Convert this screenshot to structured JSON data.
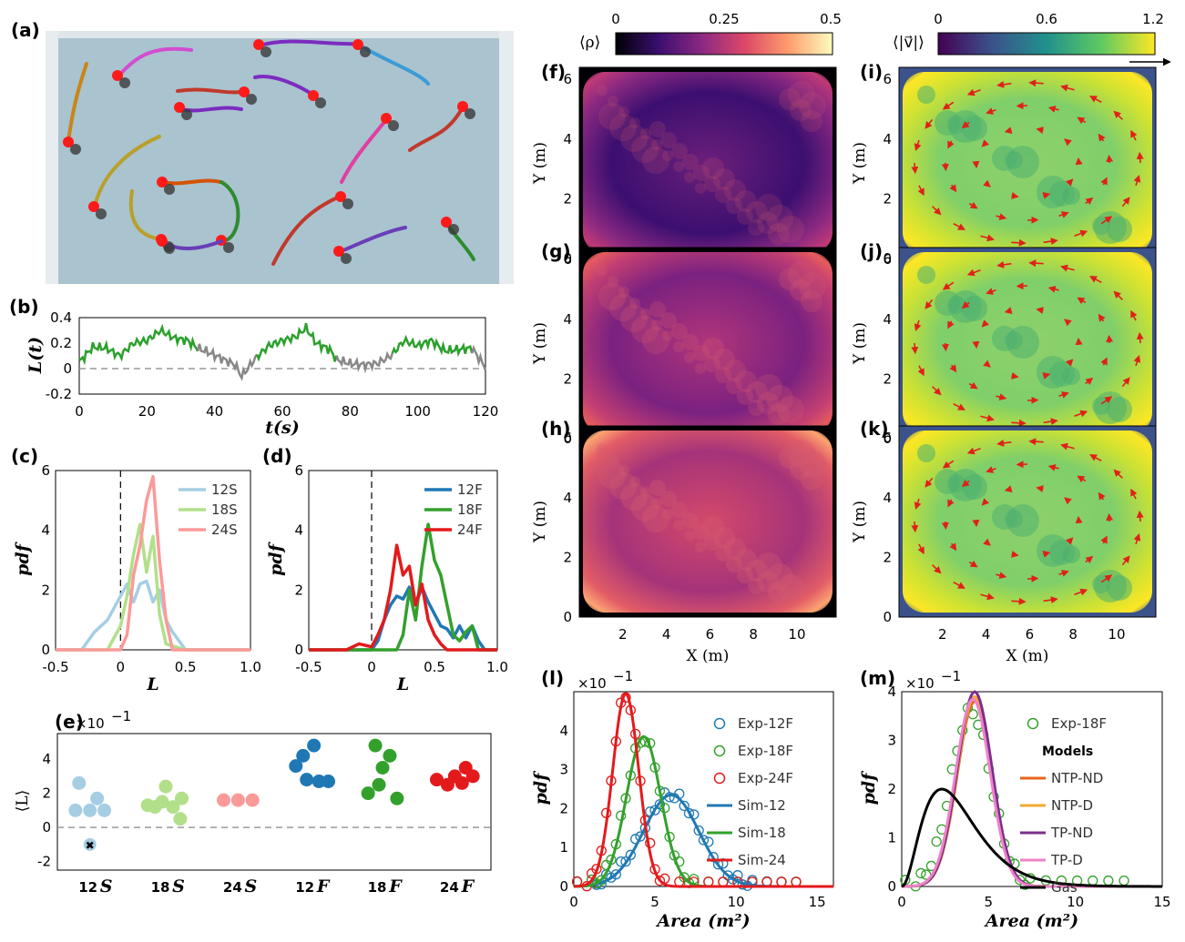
{
  "panel_labels": {
    "a": "(a)",
    "b": "(b)",
    "c": "(c)",
    "d": "(d)",
    "e": "(e)",
    "f": "(f)",
    "g": "(g)",
    "h": "(h)",
    "i": "(i)",
    "j": "(j)",
    "k": "(k)",
    "l": "(l)",
    "m": "(m)"
  },
  "panel_a": {
    "floor_color": "#a9c3cf",
    "trail_colors": [
      "#c9851a",
      "#d24dd0",
      "#7b2cbf",
      "#3b9bd6",
      "#c0392b",
      "#b8a02a",
      "#2e8b2e",
      "#d35400",
      "#e040a0",
      "#6a3db8"
    ],
    "marker_color": "#ff1a1a"
  },
  "colorbars": {
    "rho": {
      "label": "⟨ρ⟩",
      "ticks": [
        "0",
        "0.25",
        "0.5"
      ],
      "colors": [
        "#000004",
        "#3b0f70",
        "#8c2981",
        "#de4968",
        "#fe9f6d",
        "#fcfdbf"
      ]
    },
    "vel": {
      "label": "⟨|v⃗|⟩",
      "ticks": [
        "0",
        "0.6",
        "1.2"
      ],
      "colors": [
        "#440154",
        "#3b528b",
        "#21918c",
        "#5ec962",
        "#fde725"
      ]
    }
  },
  "heatmap_axes": {
    "ylabel": "Y (m)",
    "xlabel": "X (m)",
    "yticks": [
      "0",
      "2",
      "4",
      "6"
    ],
    "xticks": [
      "2",
      "4",
      "6",
      "8",
      "10"
    ]
  },
  "chart_data": [
    {
      "id": "b",
      "type": "line",
      "ylabel": "L(t)",
      "xlabel": "t(s)",
      "xlim": [
        0,
        120
      ],
      "ylim": [
        -0.2,
        0.4
      ],
      "xticks": [
        "0",
        "20",
        "40",
        "60",
        "80",
        "100",
        "120"
      ],
      "yticks": [
        "0.4",
        "0.2",
        "0",
        "-0.2"
      ],
      "colors": {
        "rotating": "#2ca02c",
        "transition": "#888888"
      },
      "x": [
        0,
        4,
        8,
        12,
        16,
        20,
        24,
        28,
        32,
        35,
        38,
        42,
        46,
        48,
        52,
        56,
        60,
        64,
        67,
        70,
        74,
        76,
        80,
        84,
        88,
        92,
        96,
        100,
        104,
        108,
        112,
        116,
        120
      ],
      "y": [
        0.05,
        0.17,
        0.16,
        0.1,
        0.2,
        0.22,
        0.3,
        0.24,
        0.22,
        0.16,
        0.13,
        0.08,
        0.03,
        -0.06,
        0.08,
        0.18,
        0.22,
        0.25,
        0.32,
        0.2,
        0.15,
        0.07,
        0.04,
        0.03,
        0.04,
        0.1,
        0.22,
        0.18,
        0.22,
        0.14,
        0.15,
        0.16,
        0.01
      ],
      "transition_ranges": [
        [
          35,
          52
        ],
        [
          76,
          92
        ],
        [
          116,
          120
        ]
      ]
    },
    {
      "id": "c",
      "type": "line",
      "ylabel": "pdf",
      "xlabel": "L",
      "xlim": [
        -0.5,
        1.0
      ],
      "ylim": [
        0,
        6
      ],
      "xticks": [
        "-0.5",
        "0",
        "0.5",
        "1.0"
      ],
      "yticks": [
        "0",
        "2",
        "4",
        "6"
      ],
      "series": [
        {
          "name": "12S",
          "color": "#a6cee3",
          "x": [
            -0.5,
            -0.3,
            -0.2,
            -0.1,
            0,
            0.05,
            0.1,
            0.15,
            0.2,
            0.25,
            0.3,
            0.35,
            0.4,
            0.5,
            1.0
          ],
          "y": [
            0,
            0,
            0.6,
            1.0,
            1.8,
            2.2,
            1.6,
            2.2,
            2.3,
            1.6,
            2.0,
            1.0,
            0.6,
            0,
            0
          ]
        },
        {
          "name": "18S",
          "color": "#b2df8a",
          "x": [
            -0.5,
            -0.1,
            0,
            0.05,
            0.1,
            0.15,
            0.2,
            0.25,
            0.3,
            0.35,
            0.5,
            1.0
          ],
          "y": [
            0,
            0,
            0.8,
            1.8,
            3.2,
            4.2,
            2.6,
            3.8,
            1.2,
            0.2,
            0,
            0
          ]
        },
        {
          "name": "24S",
          "color": "#fb9a99",
          "x": [
            -0.5,
            0,
            0.05,
            0.1,
            0.15,
            0.2,
            0.25,
            0.3,
            0.35,
            0.4,
            1.0
          ],
          "y": [
            0,
            0,
            0.5,
            2.5,
            3.5,
            5.0,
            5.8,
            3.0,
            1.0,
            0,
            0
          ]
        }
      ]
    },
    {
      "id": "d",
      "type": "line",
      "ylabel": "pdf",
      "xlabel": "L",
      "xlim": [
        -0.5,
        1.0
      ],
      "ylim": [
        0,
        6
      ],
      "xticks": [
        "-0.5",
        "0",
        "0.5",
        "1.0"
      ],
      "yticks": [
        "0",
        "2",
        "4",
        "6"
      ],
      "series": [
        {
          "name": "12F",
          "color": "#1f78b4",
          "x": [
            -0.5,
            0,
            0.05,
            0.1,
            0.15,
            0.2,
            0.25,
            0.3,
            0.35,
            0.4,
            0.45,
            0.5,
            0.55,
            0.6,
            0.65,
            0.7,
            0.75,
            0.8,
            0.85,
            0.9,
            1.0
          ],
          "y": [
            0,
            0,
            0.3,
            1.0,
            1.5,
            1.8,
            1.7,
            2.1,
            1.5,
            2.1,
            1.6,
            1.2,
            0.8,
            0.7,
            0.4,
            0.8,
            0.4,
            0.8,
            0.3,
            0,
            0
          ]
        },
        {
          "name": "18F",
          "color": "#33a02c",
          "x": [
            -0.5,
            0.2,
            0.25,
            0.3,
            0.35,
            0.4,
            0.45,
            0.5,
            0.55,
            0.6,
            0.65,
            0.7,
            0.75,
            0.8,
            0.85,
            1.0
          ],
          "y": [
            0,
            0,
            0.5,
            2.0,
            1.0,
            2.8,
            4.2,
            3.0,
            2.5,
            1.5,
            0.5,
            0.3,
            0.6,
            0.8,
            0,
            0
          ]
        },
        {
          "name": "24F",
          "color": "#e31a1c",
          "x": [
            -0.5,
            -0.2,
            -0.1,
            0,
            0.05,
            0.1,
            0.15,
            0.2,
            0.25,
            0.3,
            0.35,
            0.4,
            0.45,
            0.5,
            0.55,
            0.6,
            1.0
          ],
          "y": [
            0,
            0,
            0.2,
            0.1,
            0.5,
            1.0,
            2.0,
            3.5,
            2.5,
            2.8,
            1.5,
            2.2,
            1.0,
            0.5,
            0.2,
            0,
            0
          ]
        }
      ]
    },
    {
      "id": "e",
      "type": "scatter",
      "ylabel": "⟨L⟩",
      "scale_label": "×10",
      "ylim": [
        -2.5,
        5.5
      ],
      "yticks": [
        "4",
        "2",
        "0",
        "-2"
      ],
      "categories": [
        "12S",
        "18S",
        "24S",
        "12F",
        "18F",
        "24F"
      ],
      "series": [
        {
          "name": "12S",
          "color": "#a6cee3",
          "points": [
            [
              -0.25,
              1.0
            ],
            [
              -0.2,
              2.6
            ],
            [
              -0.05,
              1.0
            ],
            [
              0.05,
              1.7
            ],
            [
              0.15,
              1.0
            ]
          ]
        },
        {
          "name": "18S",
          "color": "#b2df8a",
          "points": [
            [
              -0.25,
              1.3
            ],
            [
              -0.15,
              1.2
            ],
            [
              -0.05,
              1.5
            ],
            [
              0.0,
              2.4
            ],
            [
              0.1,
              1.2
            ],
            [
              0.2,
              0.5
            ],
            [
              0.22,
              1.7
            ]
          ]
        },
        {
          "name": "24S",
          "color": "#fb9a99",
          "points": [
            [
              -0.2,
              1.6
            ],
            [
              0,
              1.6
            ],
            [
              0.2,
              1.6
            ]
          ]
        },
        {
          "name": "12F",
          "color": "#1f78b4",
          "points": [
            [
              -0.2,
              3.6
            ],
            [
              -0.1,
              4.2
            ],
            [
              0.05,
              4.8
            ],
            [
              -0.05,
              2.8
            ],
            [
              0.12,
              2.7
            ],
            [
              0.25,
              2.7
            ]
          ]
        },
        {
          "name": "18F",
          "color": "#33a02c",
          "points": [
            [
              -0.2,
              2.0
            ],
            [
              -0.1,
              4.8
            ],
            [
              0.0,
              3.5
            ],
            [
              0.1,
              4.2
            ],
            [
              0.2,
              1.7
            ],
            [
              -0.05,
              2.5
            ]
          ]
        },
        {
          "name": "24F",
          "color": "#e31a1c",
          "points": [
            [
              -0.25,
              2.8
            ],
            [
              -0.1,
              2.5
            ],
            [
              0.0,
              3.0
            ],
            [
              0.1,
              2.6
            ],
            [
              0.15,
              3.5
            ],
            [
              0.25,
              3.0
            ]
          ]
        }
      ],
      "outlier": {
        "category": "12S",
        "point": [
          -0.05,
          -1.0
        ]
      }
    },
    {
      "id": "l",
      "type": "line",
      "ylabel": "pdf",
      "xlabel": "Area (m²)",
      "scale_label": "×10",
      "xlim": [
        0,
        16
      ],
      "ylim": [
        0,
        0.5
      ],
      "xticks": [
        "0",
        "5",
        "10",
        "15"
      ],
      "yticks": [
        "0",
        "1",
        "2",
        "3",
        "4"
      ],
      "series": [
        {
          "name": "Exp-12F",
          "kind": "markers",
          "color": "#1f78b4",
          "mean": 6.0,
          "sd": 1.7,
          "peak": 0.235
        },
        {
          "name": "Exp-18F",
          "kind": "markers",
          "color": "#33a02c",
          "mean": 4.3,
          "sd": 1.05,
          "peak": 0.38
        },
        {
          "name": "Exp-24F",
          "kind": "markers",
          "color": "#e31a1c",
          "mean": 3.2,
          "sd": 0.8,
          "peak": 0.49
        },
        {
          "name": "Sim-12",
          "kind": "line",
          "color": "#1f78b4",
          "mean": 6.0,
          "sd": 1.7,
          "peak": 0.235
        },
        {
          "name": "Sim-18",
          "kind": "line",
          "color": "#33a02c",
          "mean": 4.3,
          "sd": 1.05,
          "peak": 0.385
        },
        {
          "name": "Sim-24",
          "kind": "line",
          "color": "#e31a1c",
          "mean": 3.2,
          "sd": 0.8,
          "peak": 0.495
        }
      ]
    },
    {
      "id": "m",
      "type": "line",
      "ylabel": "pdf",
      "xlabel": "Area (m²)",
      "scale_label": "×10",
      "xlim": [
        0,
        15
      ],
      "ylim": [
        0,
        0.4
      ],
      "xticks": [
        "0",
        "5",
        "10",
        "15"
      ],
      "yticks": [
        "0",
        "1",
        "2",
        "3",
        "4"
      ],
      "legend_header": "Models",
      "series": [
        {
          "name": "Exp-18F",
          "kind": "markers",
          "color": "#33a02c",
          "mean": 4.0,
          "sd": 1.1,
          "peak": 0.36
        },
        {
          "name": "NTP-ND",
          "kind": "line",
          "color": "#e8651a",
          "mean": 4.2,
          "sd": 1.0,
          "peak": 0.38
        },
        {
          "name": "NTP-D",
          "kind": "line",
          "color": "#f0a830",
          "mean": 4.2,
          "sd": 1.0,
          "peak": 0.39
        },
        {
          "name": "TP-ND",
          "kind": "line",
          "color": "#7b2d8e",
          "mean": 4.2,
          "sd": 1.0,
          "peak": 0.4
        },
        {
          "name": "TP-D",
          "kind": "line",
          "color": "#ee82c8",
          "mean": 4.1,
          "sd": 1.0,
          "peak": 0.385
        },
        {
          "name": "Gas",
          "kind": "gas",
          "color": "#000000",
          "peak": 0.2
        }
      ]
    }
  ]
}
